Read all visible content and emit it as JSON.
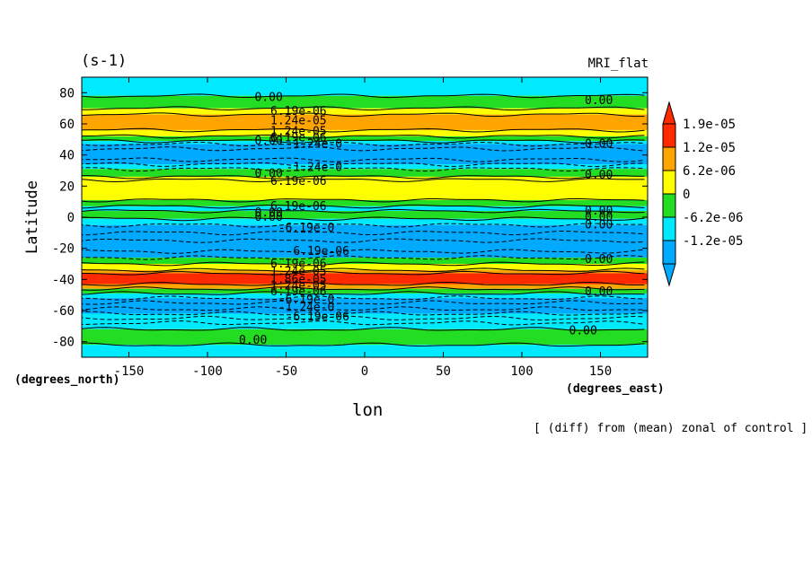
{
  "page": {
    "units_label": "(s-1)",
    "run_label": "MRI_flat",
    "note": "[ (diff) from (mean) zonal of control ]"
  },
  "chart_data": {
    "type": "heatmap",
    "subtype": "filled-contour",
    "title": "",
    "xlabel": "lon",
    "ylabel": "Latitude",
    "x_unit": "(degrees_east)",
    "y_unit": "(degrees_north)",
    "xlim": [
      -180,
      180
    ],
    "ylim": [
      -90,
      90
    ],
    "xticks": [
      -150,
      -100,
      -50,
      0,
      50,
      100,
      150
    ],
    "yticks": [
      -80,
      -60,
      -40,
      -20,
      0,
      20,
      40,
      60,
      80
    ],
    "colorbar": {
      "labels": [
        "1.9e-05",
        "1.2e-05",
        "6.2e-06",
        "0",
        "-6.2e-06",
        "-1.2e-05"
      ],
      "colors": [
        "#00aaff",
        "#00eaff",
        "#22dd22",
        "#ffff00",
        "#ffa500",
        "#ff2a00"
      ],
      "extend": "both"
    },
    "lat_bands": [
      {
        "lat_from": 90,
        "lat_to": 78,
        "class": 1
      },
      {
        "lat_from": 78,
        "lat_to": 70,
        "class": 2
      },
      {
        "lat_from": 70,
        "lat_to": 66,
        "class": 3
      },
      {
        "lat_from": 66,
        "lat_to": 56,
        "class": 4
      },
      {
        "lat_from": 56,
        "lat_to": 52,
        "class": 3
      },
      {
        "lat_from": 52,
        "lat_to": 49,
        "class": 2
      },
      {
        "lat_from": 49,
        "lat_to": 47,
        "class": 1
      },
      {
        "lat_from": 47,
        "lat_to": 34,
        "class": 0
      },
      {
        "lat_from": 34,
        "lat_to": 31,
        "class": 1
      },
      {
        "lat_from": 31,
        "lat_to": 26,
        "class": 2
      },
      {
        "lat_from": 26,
        "lat_to": 24,
        "class": 3
      },
      {
        "lat_from": 24,
        "lat_to": 11,
        "class": 3
      },
      {
        "lat_from": 11,
        "lat_to": 7,
        "class": 2
      },
      {
        "lat_from": 7,
        "lat_to": 4,
        "class": 1
      },
      {
        "lat_from": 4,
        "lat_to": -1,
        "class": 2
      },
      {
        "lat_from": -1,
        "lat_to": -5,
        "class": 1
      },
      {
        "lat_from": -5,
        "lat_to": -26,
        "class": 0
      },
      {
        "lat_from": -26,
        "lat_to": -30,
        "class": 2
      },
      {
        "lat_from": -30,
        "lat_to": -34,
        "class": 3
      },
      {
        "lat_from": -34,
        "lat_to": -36,
        "class": 4
      },
      {
        "lat_from": -36,
        "lat_to": -43,
        "class": 5
      },
      {
        "lat_from": -43,
        "lat_to": -46,
        "class": 4
      },
      {
        "lat_from": -46,
        "lat_to": -49,
        "class": 2
      },
      {
        "lat_from": -49,
        "lat_to": -52,
        "class": 1
      },
      {
        "lat_from": -52,
        "lat_to": -62,
        "class": 0
      },
      {
        "lat_from": -62,
        "lat_to": -72,
        "class": 1
      },
      {
        "lat_from": -72,
        "lat_to": -82,
        "class": 2
      },
      {
        "lat_from": -82,
        "lat_to": -90,
        "class": 1
      }
    ],
    "solid_contour_lats": [
      78,
      70,
      66,
      56,
      52,
      49,
      26,
      24,
      11,
      7,
      4,
      -1,
      -30,
      -34,
      -36,
      -43,
      -46,
      -49,
      -72,
      -82
    ],
    "dashed_contour_lats": [
      47,
      44,
      37,
      34,
      31,
      -5,
      -10,
      -15,
      -22,
      -26,
      -52,
      -55,
      -59,
      -62,
      -65,
      -68
    ],
    "contour_labels": [
      {
        "text": "0.00",
        "lon": -70,
        "lat": 77
      },
      {
        "text": "0.00",
        "lon": 140,
        "lat": 75
      },
      {
        "text": "6.19e-06",
        "lon": -60,
        "lat": 68
      },
      {
        "text": "1.24e-05",
        "lon": -60,
        "lat": 62
      },
      {
        "text": "1.24e-05",
        "lon": -60,
        "lat": 55
      },
      {
        "text": "6.19e-06",
        "lon": -60,
        "lat": 51
      },
      {
        "text": "0.00",
        "lon": -70,
        "lat": 49
      },
      {
        "text": "-1.24e-0",
        "lon": -50,
        "lat": 47
      },
      {
        "text": "0.00",
        "lon": 140,
        "lat": 47
      },
      {
        "text": "-1.24e-0",
        "lon": -50,
        "lat": 32
      },
      {
        "text": "0.00",
        "lon": -70,
        "lat": 28
      },
      {
        "text": "0.00",
        "lon": 140,
        "lat": 27
      },
      {
        "text": "6.19e-06",
        "lon": -60,
        "lat": 23
      },
      {
        "text": "6.19e-06",
        "lon": -60,
        "lat": 7
      },
      {
        "text": "0.00",
        "lon": -70,
        "lat": 3
      },
      {
        "text": "0.00",
        "lon": 140,
        "lat": 4
      },
      {
        "text": "0.00",
        "lon": -70,
        "lat": 0
      },
      {
        "text": "0.00",
        "lon": 140,
        "lat": 0
      },
      {
        "text": "-6.19e-0",
        "lon": -55,
        "lat": -7
      },
      {
        "text": "0.00",
        "lon": 140,
        "lat": -5
      },
      {
        "text": "-6.19e-06",
        "lon": -50,
        "lat": -22
      },
      {
        "text": "0.00",
        "lon": 140,
        "lat": -27
      },
      {
        "text": "6.19e-06",
        "lon": -60,
        "lat": -30
      },
      {
        "text": "1.24e-05",
        "lon": -60,
        "lat": -35
      },
      {
        "text": "1.86e-05",
        "lon": -60,
        "lat": -40
      },
      {
        "text": "1.24e-05",
        "lon": -60,
        "lat": -44
      },
      {
        "text": "6.19e-06",
        "lon": -60,
        "lat": -48
      },
      {
        "text": "0.00",
        "lon": 140,
        "lat": -48
      },
      {
        "text": "-6.19e-0",
        "lon": -55,
        "lat": -53
      },
      {
        "text": "-1.24e-0",
        "lon": -55,
        "lat": -58
      },
      {
        "text": "-6.19e-06",
        "lon": -50,
        "lat": -64
      },
      {
        "text": "0.00",
        "lon": -80,
        "lat": -79
      },
      {
        "text": "0.00",
        "lon": 130,
        "lat": -73
      }
    ]
  }
}
